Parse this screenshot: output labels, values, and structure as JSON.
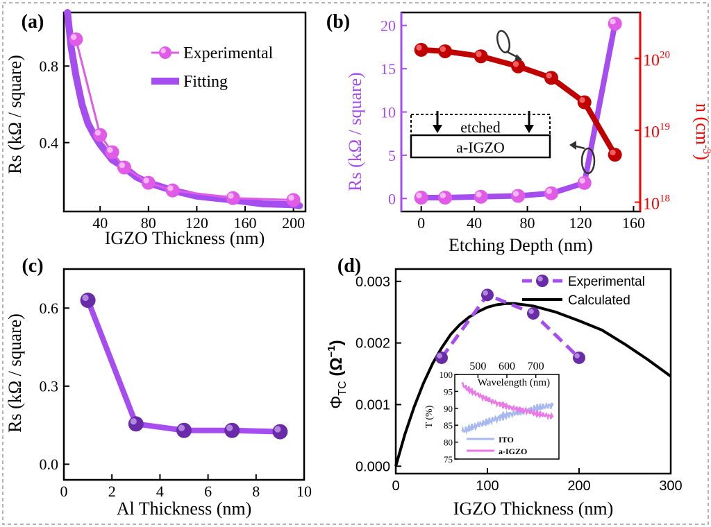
{
  "figure": {
    "colors": {
      "magenta": "#e05be6",
      "purple": "#a64df0",
      "violet": "#6a2ba8",
      "darkred": "#c00000",
      "red": "#ff0000",
      "ito": "#a8b8f0",
      "igzo": "#e879e6",
      "black": "#000000",
      "frame": "#999999"
    }
  },
  "chart_data": [
    {
      "panel": "(a)",
      "type": "scatter",
      "xlabel": "IGZO Thickness (nm)",
      "ylabel": "Rs (kΩ / square)",
      "xlim": [
        10,
        210
      ],
      "ylim": [
        0.04,
        1.08
      ],
      "xticks": [
        40,
        80,
        120,
        160,
        200
      ],
      "xtick_labels": [
        "40",
        "80",
        "120",
        "160",
        "200"
      ],
      "yticks": [
        0.4,
        0.8
      ],
      "ytick_labels": [
        "0.4",
        "0.8"
      ],
      "legend": [
        {
          "label": "Experimental",
          "kind": "line-marker"
        },
        {
          "label": "Fitting",
          "kind": "thick-line"
        }
      ],
      "series": [
        {
          "name": "Experimental",
          "x": [
            20,
            40,
            50,
            60,
            80,
            100,
            150,
            200
          ],
          "y": [
            0.94,
            0.44,
            0.35,
            0.27,
            0.19,
            0.15,
            0.11,
            0.1
          ]
        },
        {
          "name": "Fitting",
          "x": [
            13,
            16,
            20,
            25,
            30,
            35,
            40,
            50,
            60,
            70,
            80,
            100,
            120,
            150,
            175,
            200,
            205
          ],
          "y": [
            1.08,
            0.9,
            0.75,
            0.6,
            0.5,
            0.44,
            0.39,
            0.31,
            0.27,
            0.22,
            0.19,
            0.15,
            0.12,
            0.1,
            0.08,
            0.075,
            0.07
          ]
        }
      ]
    },
    {
      "panel": "(b)",
      "type": "line",
      "xlabel": "Etching Depth (nm)",
      "ylabel": "Rs (kΩ  / square)",
      "ylabel_right": "n (cm",
      "ylabel_right_sup": "-3",
      "ylabel_right_end": ")",
      "xlim": [
        -15,
        165
      ],
      "ylim": [
        -1.5,
        21.5
      ],
      "xticks": [
        0,
        40,
        80,
        120,
        160
      ],
      "xtick_labels": [
        "0",
        "40",
        "80",
        "120",
        "160"
      ],
      "yticks": [
        0,
        5,
        10,
        15,
        20
      ],
      "ytick_labels": [
        "0",
        "5",
        "10",
        "15",
        "20"
      ],
      "right_ylim_log10": [
        17.87,
        20.64
      ],
      "right_ticks": [
        18,
        19,
        20
      ],
      "right_tick_base": "10",
      "right_tick_exps": [
        "18",
        "19",
        "20"
      ],
      "inset_labels": {
        "top": "etched",
        "bottom": "a-IGZO"
      },
      "series": [
        {
          "name": "Rs",
          "axis": "left",
          "x": [
            0,
            18,
            45,
            73,
            98,
            123,
            146
          ],
          "y": [
            0.1,
            0.1,
            0.2,
            0.3,
            0.6,
            1.8,
            20.2
          ]
        },
        {
          "name": "n",
          "axis": "right",
          "x": [
            0,
            18,
            45,
            73,
            98,
            123,
            146
          ],
          "y_log10": [
            20.12,
            20.1,
            20.03,
            19.89,
            19.73,
            19.39,
            18.66
          ]
        }
      ]
    },
    {
      "panel": "(c)",
      "type": "line",
      "xlabel": "Al Thickness (nm)",
      "ylabel": "Rs (kΩ / square)",
      "xlim": [
        0,
        10
      ],
      "ylim": [
        -0.06,
        0.75
      ],
      "xticks": [
        0,
        2,
        4,
        6,
        8,
        10
      ],
      "xtick_labels": [
        "0",
        "2",
        "4",
        "6",
        "8",
        "10"
      ],
      "yticks": [
        0.0,
        0.3,
        0.6
      ],
      "ytick_labels": [
        "0.0",
        "0.3",
        "0.6"
      ],
      "series": [
        {
          "name": "Rs",
          "x": [
            1,
            3,
            5,
            7,
            9
          ],
          "y": [
            0.63,
            0.155,
            0.13,
            0.13,
            0.125
          ]
        }
      ]
    },
    {
      "panel": "(d)",
      "type": "line",
      "xlabel": "IGZO Thickness (nm)",
      "ylabel_main": "Φ",
      "ylabel_sub": "TC",
      "ylabel_unit": "(Ω",
      "ylabel_sup": "−1",
      "ylabel_end": ")",
      "xlim": [
        0,
        300
      ],
      "ylim": [
        -0.00012,
        0.0032
      ],
      "xticks": [
        0,
        100,
        200,
        300
      ],
      "xtick_labels": [
        "0",
        "100",
        "200",
        "300"
      ],
      "yticks": [
        0.0,
        0.001,
        0.002,
        0.003
      ],
      "ytick_labels": [
        "0.000",
        "0.001",
        "0.002",
        "0.003"
      ],
      "legend": [
        {
          "label": "Experimental",
          "kind": "dashed-marker"
        },
        {
          "label": "Calculated",
          "kind": "line"
        }
      ],
      "series": [
        {
          "name": "Experimental",
          "x": [
            50,
            100,
            150,
            200
          ],
          "y": [
            0.00176,
            0.00278,
            0.00248,
            0.00176
          ]
        },
        {
          "name": "Calculated",
          "x": [
            0,
            10,
            20,
            30,
            40,
            50,
            60,
            70,
            80,
            90,
            100,
            110,
            120,
            130,
            140,
            150,
            175,
            200,
            225,
            250,
            275,
            300
          ],
          "y": [
            0.0,
            0.00052,
            0.00096,
            0.00134,
            0.00166,
            0.00192,
            0.00214,
            0.0023,
            0.00242,
            0.00251,
            0.00258,
            0.00262,
            0.00264,
            0.00264,
            0.00262,
            0.0026,
            0.0025,
            0.00236,
            0.00221,
            0.00198,
            0.00173,
            0.00146
          ]
        }
      ],
      "inset": {
        "xlabel": "Wavelength (nm)",
        "ylabel": "T (%)",
        "xlim": [
          420,
          780
        ],
        "ylim": [
          75,
          100
        ],
        "xticks": [
          500,
          600,
          700
        ],
        "xtick_labels": [
          "500",
          "600",
          "700"
        ],
        "yticks": [
          75,
          80,
          85,
          90,
          95,
          100
        ],
        "ytick_labels": [
          "75",
          "80",
          "85",
          "90",
          "95",
          "100"
        ],
        "legend": [
          "ITO",
          "a-IGZO"
        ],
        "series": [
          {
            "name": "ITO",
            "x": [
              440,
              470,
              500,
              550,
              600,
              650,
              700,
              730,
              760
            ],
            "y": [
              83,
              84,
              85,
              86.5,
              88,
              89,
              90,
              90.5,
              91
            ]
          },
          {
            "name": "a-IGZO",
            "x": [
              440,
              445,
              460,
              500,
              550,
              600,
              650,
              700,
              760
            ],
            "y": [
              93,
              97,
              96,
              94,
              92,
              90.5,
              89.5,
              88.5,
              87.5
            ]
          }
        ]
      }
    }
  ]
}
